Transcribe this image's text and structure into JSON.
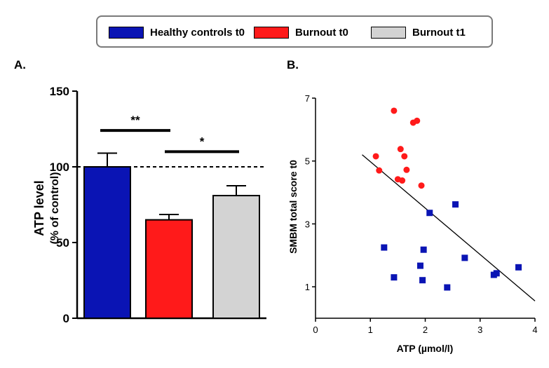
{
  "legend": {
    "items": [
      {
        "label": "Healthy controls  t0",
        "color": "#0a14b4"
      },
      {
        "label": "Burnout  t0",
        "color": "#ff1a1a"
      },
      {
        "label": "Burnout  t1",
        "color": "#d3d3d3"
      }
    ]
  },
  "chart_data": [
    {
      "type": "bar",
      "panel_label": "A.",
      "categories": [
        "Healthy controls  t0",
        "Burnout  t0",
        "Burnout  t1"
      ],
      "values": [
        100,
        65,
        81
      ],
      "error": [
        9,
        3.5,
        6.5
      ],
      "colors": [
        "#0a14b4",
        "#ff1a1a",
        "#d3d3d3"
      ],
      "ylabel": "ATP level",
      "ylabel2": "(% of control)",
      "ylim": [
        0,
        150
      ],
      "yticks": [
        "0",
        "50",
        "100",
        "150"
      ],
      "reference_line": 100,
      "significance": [
        {
          "label": "**",
          "from": 0,
          "to": 1,
          "y": 124
        },
        {
          "label": "*",
          "from": 1,
          "to": 2,
          "y": 110
        }
      ]
    },
    {
      "type": "scatter",
      "panel_label": "B.",
      "xlabel": "ATP (µmol/l)",
      "ylabel": "SMBM total score t0",
      "xlim": [
        0,
        4
      ],
      "ylim": [
        0,
        7
      ],
      "xticks": [
        "0",
        "1",
        "2",
        "3",
        "4"
      ],
      "yticks": [
        "1",
        "3",
        "5",
        "7"
      ],
      "series": [
        {
          "marker": "circle",
          "color": "#ff1a1a",
          "points": [
            [
              1.43,
              6.6
            ],
            [
              1.78,
              6.22
            ],
            [
              1.85,
              6.28
            ],
            [
              1.55,
              5.38
            ],
            [
              1.1,
              5.15
            ],
            [
              1.62,
              5.15
            ],
            [
              1.16,
              4.7
            ],
            [
              1.66,
              4.72
            ],
            [
              1.5,
              4.42
            ],
            [
              1.58,
              4.38
            ],
            [
              1.93,
              4.22
            ]
          ]
        },
        {
          "marker": "square",
          "color": "#0a14b4",
          "points": [
            [
              2.55,
              3.62
            ],
            [
              2.08,
              3.35
            ],
            [
              1.25,
              2.25
            ],
            [
              1.97,
              2.18
            ],
            [
              2.72,
              1.92
            ],
            [
              1.91,
              1.67
            ],
            [
              3.7,
              1.62
            ],
            [
              3.3,
              1.43
            ],
            [
              3.25,
              1.38
            ],
            [
              1.43,
              1.3
            ],
            [
              1.95,
              1.21
            ],
            [
              2.4,
              0.98
            ]
          ]
        }
      ],
      "regression": {
        "x": [
          0.85,
          4.0
        ],
        "y": [
          5.2,
          0.55
        ]
      }
    }
  ]
}
